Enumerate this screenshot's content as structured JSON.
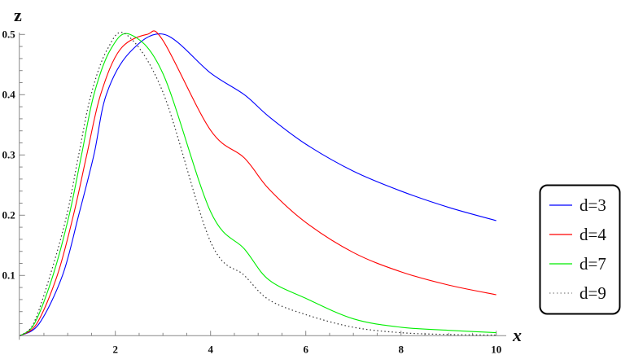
{
  "chart_data": {
    "type": "line",
    "title": "",
    "xlabel": "x",
    "ylabel": "z",
    "xlim": [
      0,
      10
    ],
    "ylim": [
      0,
      0.5
    ],
    "x_ticks": [
      2,
      4,
      6,
      8,
      10
    ],
    "x_tick_labels": [
      "2",
      "4",
      "6",
      "8",
      "10"
    ],
    "y_ticks": [
      0.1,
      0.2,
      0.3,
      0.4,
      0.5
    ],
    "y_tick_labels": [
      "0.1",
      "0.2",
      "0.3",
      "0.4",
      "0.5"
    ],
    "grid": false,
    "legend_position": "right",
    "series": [
      {
        "name": "d=3",
        "color": "#0000ff",
        "style": "solid",
        "points": [
          [
            0,
            0
          ],
          [
            0.4,
            0.02
          ],
          [
            0.89,
            0.1
          ],
          [
            1.23,
            0.2
          ],
          [
            1.55,
            0.3
          ],
          [
            1.81,
            0.4
          ],
          [
            2.3,
            0.47
          ],
          [
            3.03,
            0.5
          ],
          [
            4,
            0.436
          ],
          [
            4.71,
            0.4
          ],
          [
            5.22,
            0.364
          ],
          [
            6,
            0.318
          ],
          [
            7,
            0.273
          ],
          [
            8,
            0.24
          ],
          [
            9,
            0.213
          ],
          [
            10,
            0.191
          ]
        ]
      },
      {
        "name": "d=4",
        "color": "#ff0000",
        "style": "solid",
        "points": [
          [
            0,
            0
          ],
          [
            0.35,
            0.02
          ],
          [
            0.78,
            0.1
          ],
          [
            1.12,
            0.2
          ],
          [
            1.4,
            0.3
          ],
          [
            1.69,
            0.4
          ],
          [
            2.1,
            0.475
          ],
          [
            2.66,
            0.5
          ],
          [
            3,
            0.49
          ],
          [
            4,
            0.341
          ],
          [
            4.71,
            0.295
          ],
          [
            5.22,
            0.244
          ],
          [
            6,
            0.188
          ],
          [
            7,
            0.138
          ],
          [
            8,
            0.106
          ],
          [
            9,
            0.084
          ],
          [
            10,
            0.068
          ]
        ]
      },
      {
        "name": "d=7",
        "color": "#00ee00",
        "style": "solid",
        "points": [
          [
            0,
            0
          ],
          [
            0.3,
            0.02
          ],
          [
            0.69,
            0.1
          ],
          [
            1.03,
            0.2
          ],
          [
            1.29,
            0.3
          ],
          [
            1.55,
            0.4
          ],
          [
            1.9,
            0.475
          ],
          [
            2.31,
            0.5
          ],
          [
            3,
            0.435
          ],
          [
            4,
            0.206
          ],
          [
            4.71,
            0.144
          ],
          [
            5.22,
            0.093
          ],
          [
            6,
            0.062
          ],
          [
            7,
            0.028
          ],
          [
            8,
            0.014
          ],
          [
            9,
            0.009
          ],
          [
            10,
            0.005
          ]
        ]
      },
      {
        "name": "d=9",
        "color": "#333333",
        "style": "dotted",
        "points": [
          [
            0,
            0
          ],
          [
            0.28,
            0.02
          ],
          [
            0.63,
            0.1
          ],
          [
            0.98,
            0.2
          ],
          [
            1.23,
            0.3
          ],
          [
            1.49,
            0.4
          ],
          [
            1.83,
            0.475
          ],
          [
            2.23,
            0.5
          ],
          [
            3,
            0.404
          ],
          [
            4,
            0.156
          ],
          [
            4.71,
            0.1
          ],
          [
            5.22,
            0.06
          ],
          [
            6,
            0.035
          ],
          [
            7,
            0.014
          ],
          [
            8,
            0.005
          ],
          [
            9,
            0.002
          ],
          [
            10,
            0.001
          ]
        ]
      }
    ]
  }
}
